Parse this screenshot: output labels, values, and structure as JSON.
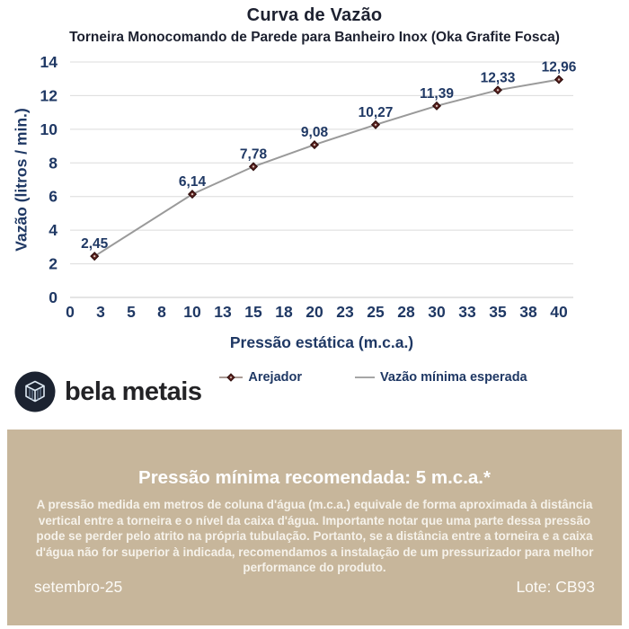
{
  "chart_data": {
    "type": "line",
    "title": "Curva de Vazão",
    "subtitle": "Torneira Monocomando de Parede para Banheiro Inox (Oka Grafite Fosca)",
    "xlabel": "Pressão estática (m.c.a.)",
    "ylabel": "Vazão (litros / min.)",
    "xlim": [
      0,
      40
    ],
    "ylim": [
      0,
      14
    ],
    "x": [
      2,
      10,
      15,
      20,
      25,
      30,
      35,
      40
    ],
    "series": [
      {
        "name": "Arejador",
        "values": [
          2.45,
          6.14,
          7.78,
          9.08,
          10.27,
          11.39,
          12.33,
          12.96
        ]
      },
      {
        "name": "Vazão mínima esperada",
        "values": []
      }
    ],
    "point_labels": [
      "2,45",
      "6,14",
      "7,78",
      "9,08",
      "10,27",
      "11,39",
      "12,33",
      "12,96"
    ],
    "x_ticks": [
      "0",
      "3",
      "5",
      "8",
      "10",
      "13",
      "15",
      "18",
      "20",
      "23",
      "25",
      "28",
      "30",
      "33",
      "35",
      "38",
      "40"
    ],
    "y_ticks": [
      0,
      2,
      4,
      6,
      8,
      10,
      12,
      14
    ],
    "grid": "horizontal",
    "legend_position": "bottom",
    "colors": {
      "line": "#9a9a9a",
      "marker_fill": "#5f2422",
      "marker_stroke": "#2e0f0e",
      "text": "#1f3864",
      "grid": "#dcdcdc"
    }
  },
  "legend": {
    "items": [
      {
        "label": "Arejador",
        "key": "line-diamond"
      },
      {
        "label": "Vazão mínima esperada",
        "key": "line"
      }
    ]
  },
  "brand": {
    "name": "bela metais"
  },
  "info_panel": {
    "heading": "Pressão mínima recomendada: 5 m.c.a.*",
    "body": "A pressão medida em metros de coluna d'água (m.c.a.) equivale de forma aproximada à distância vertical entre a torneira e o nível da caixa d'água. Importante notar que uma parte dessa pressão pode se perder pelo atrito na própria tubulação. Portanto, se a distância entre a torneira e a caixa d'água não for superior à indicada, recomendamos a instalação de um pressurizador para melhor performance do produto.",
    "date": "setembro-25",
    "lot": "Lote: CB93",
    "background": "#c7b69b"
  }
}
